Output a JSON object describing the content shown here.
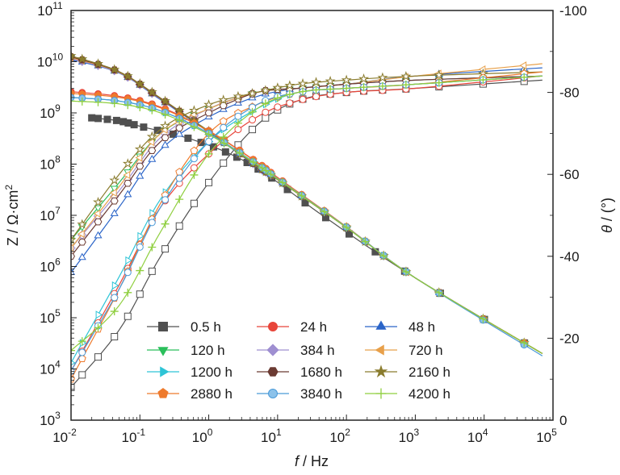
{
  "chart_data": {
    "type": "line",
    "title": "",
    "x_axis": {
      "label_italic": "f",
      "label_rest": " / Hz",
      "scale": "log",
      "range": [
        0.01,
        100000
      ],
      "tick_labels": [
        {
          "base": "10",
          "exp": "-2"
        },
        {
          "base": "10",
          "exp": "-1"
        },
        {
          "base": "10",
          "exp": "0"
        },
        {
          "base": "10",
          "exp": "1"
        },
        {
          "base": "10",
          "exp": "2"
        },
        {
          "base": "10",
          "exp": "3"
        },
        {
          "base": "10",
          "exp": "4"
        },
        {
          "base": "10",
          "exp": "5"
        }
      ]
    },
    "y_left": {
      "label_main": "Z / Ω·cm",
      "label_sup": "2",
      "scale": "log",
      "range": [
        1000,
        100000000000
      ],
      "tick_labels": [
        {
          "base": "10",
          "exp": "3"
        },
        {
          "base": "10",
          "exp": "4"
        },
        {
          "base": "10",
          "exp": "5"
        },
        {
          "base": "10",
          "exp": "6"
        },
        {
          "base": "10",
          "exp": "7"
        },
        {
          "base": "10",
          "exp": "8"
        },
        {
          "base": "10",
          "exp": "9"
        },
        {
          "base": "10",
          "exp": "10"
        },
        {
          "base": "10",
          "exp": "11"
        }
      ]
    },
    "y_right": {
      "label_italic": "θ",
      "label_rest": " / (°)",
      "range": [
        0,
        -100
      ],
      "tick_labels": [
        "0",
        "-20",
        "-40",
        "-60",
        "-80",
        "-100"
      ]
    },
    "grid": false,
    "legend_position": "bottom-center (3 columns)",
    "marker_style": "filled markers = |Z|, open markers = phase angle",
    "series": [
      {
        "name": "0.5 h",
        "color": "#505050",
        "marker": "square",
        "modulus": {
          "f": [
            0.02,
            0.05,
            0.1,
            0.5,
            2,
            7,
            50,
            1000,
            70000
          ],
          "z": [
            800000000,
            700000000,
            550000000,
            320000000,
            160000000,
            62000000,
            9000000,
            600000,
            20000
          ]
        },
        "phase": {
          "f": [
            0.01,
            0.05,
            0.2,
            1,
            5,
            20,
            100,
            1000,
            70000
          ],
          "theta": [
            -8,
            -22,
            -40,
            -58,
            -72,
            -78,
            -80,
            -81,
            -83
          ]
        }
      },
      {
        "name": "24 h",
        "color": "#e8453a",
        "marker": "circle",
        "modulus": {
          "f": [
            0.01,
            0.05,
            0.2,
            1,
            5,
            10,
            100,
            1000,
            70000
          ],
          "z": [
            2600000000,
            2100000000,
            1300000000,
            450000000,
            110000000,
            55000000,
            6000000,
            600000,
            20000
          ]
        },
        "phase": {
          "f": [
            0.01,
            0.05,
            0.2,
            1,
            5,
            20,
            100,
            1000,
            70000
          ],
          "theta": [
            -12,
            -33,
            -52,
            -65,
            -74,
            -78,
            -80,
            -81,
            -84
          ]
        }
      },
      {
        "name": "48 h",
        "color": "#2a64c8",
        "marker": "triangle-up",
        "modulus": {
          "f": [
            0.01,
            0.05,
            0.2,
            1,
            5,
            10,
            100,
            1000,
            70000
          ],
          "z": [
            11000000000,
            6000000000,
            1800000000,
            420000000,
            90000000,
            50000000,
            5800000,
            600000,
            20000
          ]
        },
        "phase": {
          "f": [
            0.01,
            0.05,
            0.2,
            1,
            5,
            20,
            100,
            1000,
            70000
          ],
          "theta": [
            -36,
            -52,
            -66,
            -74,
            -79,
            -81,
            -82,
            -84,
            -86
          ]
        }
      },
      {
        "name": "120 h",
        "color": "#2bbf5b",
        "marker": "triangle-down",
        "modulus": {
          "f": [
            0.01,
            0.05,
            0.2,
            1,
            5,
            10,
            100,
            1000,
            70000
          ],
          "z": [
            12000000000,
            6200000000,
            1900000000,
            430000000,
            92000000,
            50000000,
            5800000,
            600000,
            20000
          ]
        },
        "phase": {
          "f": [
            0.01,
            0.05,
            0.2,
            1,
            5,
            20,
            100,
            1000,
            70000
          ],
          "theta": [
            -44,
            -58,
            -70,
            -76,
            -80,
            -81,
            -82,
            -83,
            -84
          ]
        }
      },
      {
        "name": "384 h",
        "color": "#9f8fd1",
        "marker": "diamond",
        "modulus": {
          "f": [
            0.01,
            0.05,
            0.2,
            1,
            5,
            10,
            100,
            1000,
            70000
          ],
          "z": [
            11500000000,
            6100000000,
            1850000000,
            430000000,
            91000000,
            50000000,
            5800000,
            600000,
            20000
          ]
        },
        "phase": {
          "f": [
            0.01,
            0.05,
            0.2,
            1,
            5,
            20,
            100,
            1000,
            70000
          ],
          "theta": [
            -42,
            -56,
            -69,
            -76,
            -80,
            -81,
            -82,
            -83,
            -84
          ]
        }
      },
      {
        "name": "720 h",
        "color": "#e8a04a",
        "marker": "triangle-left",
        "modulus": {
          "f": [
            0.01,
            0.05,
            0.2,
            1,
            5,
            10,
            100,
            1000,
            70000
          ],
          "z": [
            12000000000,
            6200000000,
            1900000000,
            430000000,
            92000000,
            50000000,
            5800000,
            600000,
            20000
          ]
        },
        "phase": {
          "f": [
            0.01,
            0.05,
            0.2,
            1,
            5,
            20,
            100,
            1000,
            70000
          ],
          "theta": [
            -42,
            -57,
            -70,
            -76,
            -80,
            -81,
            -82,
            -84,
            -87
          ]
        }
      },
      {
        "name": "1200 h",
        "color": "#2ec4d6",
        "marker": "triangle-right",
        "modulus": {
          "f": [
            0.01,
            0.05,
            0.2,
            1,
            5,
            10,
            100,
            1000,
            70000
          ],
          "z": [
            2000000000,
            1700000000,
            1100000000,
            400000000,
            100000000,
            52000000,
            5900000,
            600000,
            20000
          ]
        },
        "phase": {
          "f": [
            0.01,
            0.05,
            0.2,
            1,
            5,
            20,
            100,
            1000,
            70000
          ],
          "theta": [
            -14,
            -35,
            -54,
            -68,
            -76,
            -80,
            -81,
            -82,
            -84
          ]
        }
      },
      {
        "name": "1680 h",
        "color": "#6b3a32",
        "marker": "hexagon",
        "modulus": {
          "f": [
            0.01,
            0.05,
            0.2,
            1,
            5,
            10,
            100,
            1000,
            70000
          ],
          "z": [
            12500000000,
            6300000000,
            1900000000,
            430000000,
            92000000,
            50000000,
            5800000,
            600000,
            20000
          ]
        },
        "phase": {
          "f": [
            0.01,
            0.05,
            0.2,
            1,
            5,
            20,
            100,
            1000,
            70000
          ],
          "theta": [
            -40,
            -55,
            -68,
            -75,
            -80,
            -81,
            -82,
            -83,
            -84
          ]
        }
      },
      {
        "name": "2160 h",
        "color": "#8a7c2e",
        "marker": "star",
        "modulus": {
          "f": [
            0.01,
            0.05,
            0.2,
            1,
            5,
            10,
            100,
            1000,
            70000
          ],
          "z": [
            13000000000,
            6400000000,
            1950000000,
            440000000,
            93000000,
            50000000,
            5800000,
            600000,
            20000
          ]
        },
        "phase": {
          "f": [
            0.01,
            0.05,
            0.2,
            1,
            5,
            20,
            100,
            1000,
            70000
          ],
          "theta": [
            -44,
            -60,
            -71,
            -77,
            -80,
            -82,
            -83,
            -84,
            -85
          ]
        }
      },
      {
        "name": "2880 h",
        "color": "#ee7a2c",
        "marker": "pentagon",
        "modulus": {
          "f": [
            0.01,
            0.05,
            0.2,
            1,
            5,
            10,
            100,
            1000,
            70000
          ],
          "z": [
            2400000000,
            2000000000,
            1250000000,
            440000000,
            108000000,
            54000000,
            6000000,
            600000,
            20000
          ]
        },
        "phase": {
          "f": [
            0.01,
            0.05,
            0.2,
            1,
            5,
            20,
            100,
            1000,
            70000
          ],
          "theta": [
            -10,
            -32,
            -53,
            -70,
            -77,
            -80,
            -81,
            -82,
            -85
          ]
        }
      },
      {
        "name": "3840 h",
        "color": "#4a9ad8",
        "marker": "circle-shaded",
        "modulus": {
          "f": [
            0.01,
            0.05,
            0.2,
            1,
            5,
            10,
            100,
            1000,
            70000
          ],
          "z": [
            2000000000,
            1700000000,
            1100000000,
            400000000,
            100000000,
            52000000,
            5900000,
            600000,
            18000
          ]
        },
        "phase": {
          "f": [
            0.01,
            0.05,
            0.2,
            1,
            5,
            20,
            100,
            1000,
            70000
          ],
          "theta": [
            -12,
            -32,
            -52,
            -68,
            -77,
            -80,
            -81,
            -82,
            -84
          ]
        }
      },
      {
        "name": "4200 h",
        "color": "#8fcf3f",
        "marker": "plus",
        "modulus": {
          "f": [
            0.01,
            0.05,
            0.2,
            1,
            5,
            10,
            100,
            1000,
            70000
          ],
          "z": [
            1700000000,
            1500000000,
            1000000000,
            380000000,
            98000000,
            51000000,
            5800000,
            600000,
            20000
          ]
        },
        "phase": {
          "f": [
            0.01,
            0.05,
            0.2,
            1,
            5,
            20,
            100,
            1000,
            70000
          ],
          "theta": [
            -17,
            -28,
            -46,
            -65,
            -76,
            -80,
            -81,
            -82,
            -84
          ]
        }
      }
    ]
  }
}
